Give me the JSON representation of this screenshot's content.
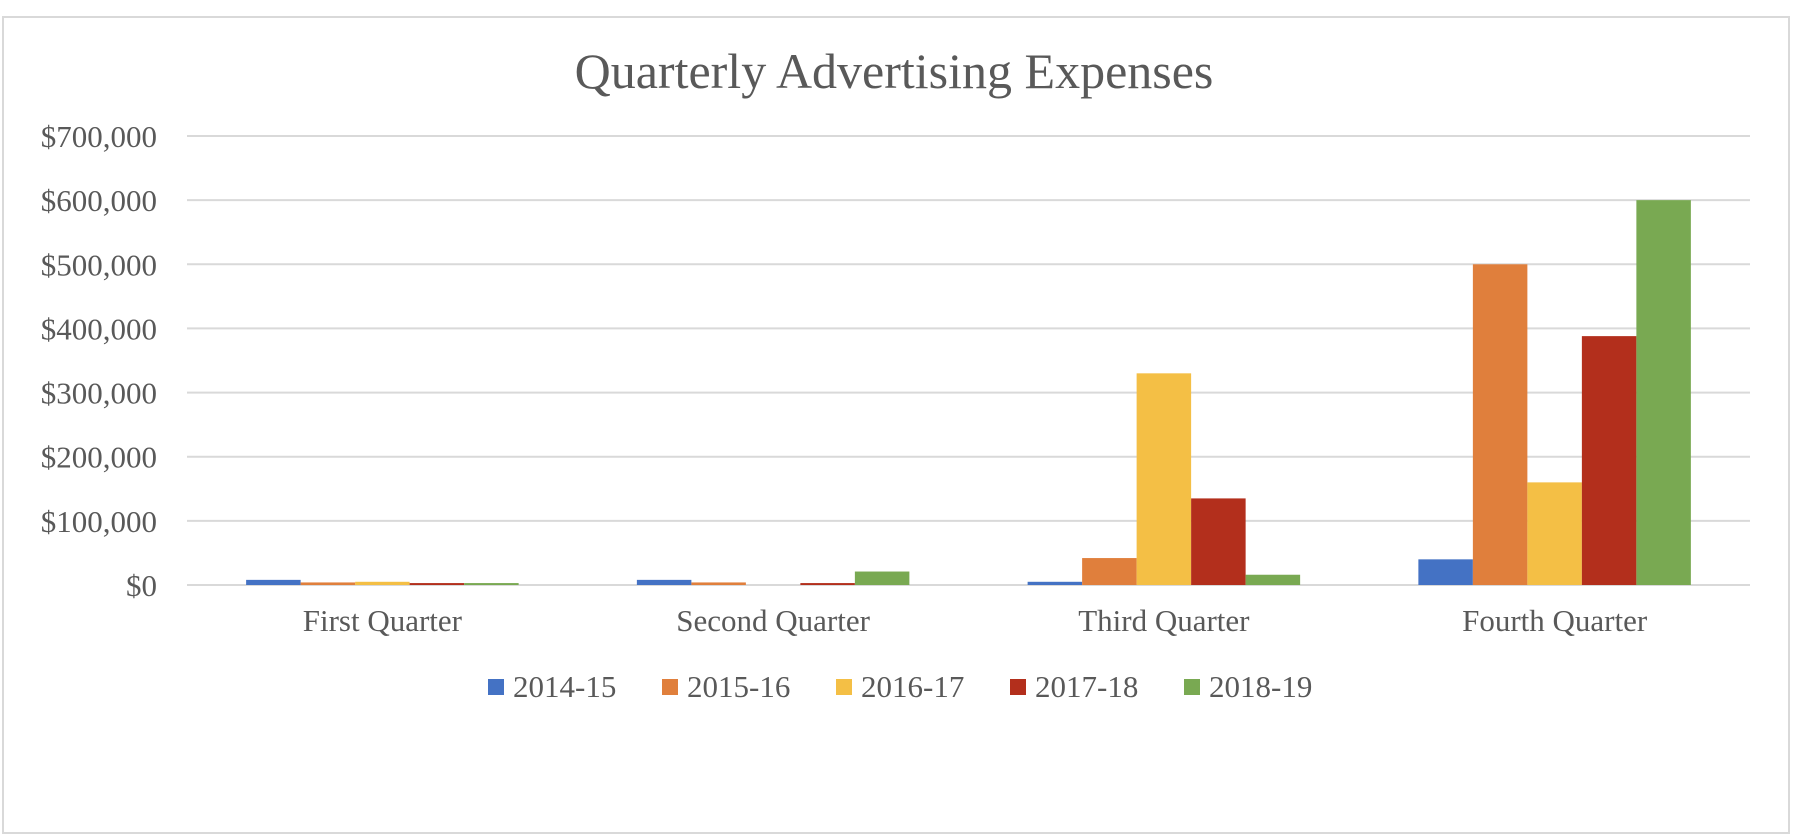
{
  "chart_data": {
    "type": "bar",
    "title": "Quarterly Advertising Expenses",
    "xlabel": "",
    "ylabel": "",
    "categories": [
      "First Quarter",
      "Second Quarter",
      "Third Quarter",
      "Fourth Quarter"
    ],
    "series": [
      {
        "name": "2014-15",
        "color": "#4472c4",
        "values": [
          8000,
          8000,
          5000,
          40000
        ]
      },
      {
        "name": "2015-16",
        "color": "#e07f3c",
        "values": [
          4000,
          4000,
          42000,
          500000
        ]
      },
      {
        "name": "2016-17",
        "color": "#f4bf45",
        "values": [
          5000,
          0,
          330000,
          160000
        ]
      },
      {
        "name": "2017-18",
        "color": "#b32f1c",
        "values": [
          3000,
          3000,
          135000,
          388000
        ]
      },
      {
        "name": "2018-19",
        "color": "#79a952",
        "values": [
          3000,
          21000,
          16000,
          600000
        ]
      }
    ],
    "ylim": [
      0,
      700000
    ],
    "yticks": [
      0,
      100000,
      200000,
      300000,
      400000,
      500000,
      600000,
      700000
    ],
    "ytick_labels": [
      "$0",
      "$100,000",
      "$200,000",
      "$300,000",
      "$400,000",
      "$500,000",
      "$600,000",
      "$700,000"
    ],
    "grid": true,
    "legend_position": "bottom"
  },
  "colors": {
    "gridline": "#d9d9d9",
    "text": "#595959",
    "frame": "#d9d9d9"
  }
}
